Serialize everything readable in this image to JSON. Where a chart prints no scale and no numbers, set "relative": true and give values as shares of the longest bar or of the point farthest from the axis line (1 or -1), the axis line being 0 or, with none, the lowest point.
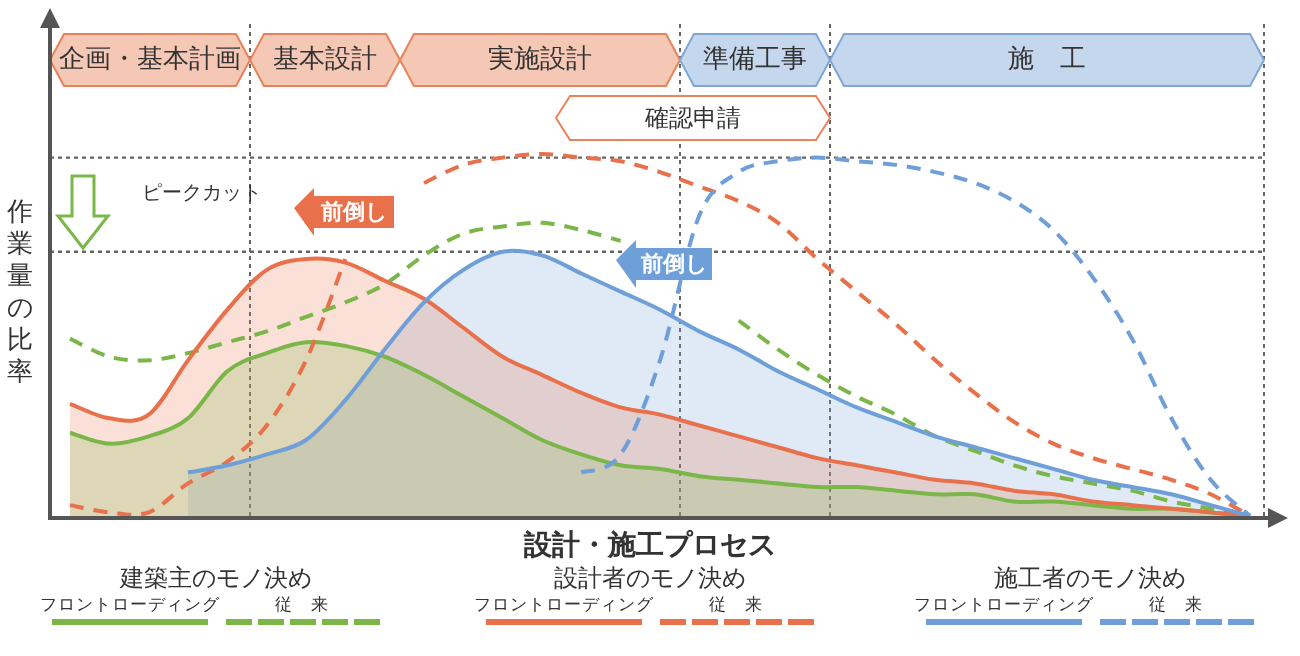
{
  "chart_data": {
    "type": "line",
    "relative": true,
    "ylabel": "作業量の比率",
    "xlabel": "設計・施工プロセス",
    "categories": [
      null,
      null,
      null,
      null,
      null,
      null,
      null,
      null,
      null,
      null,
      null,
      null,
      null,
      null,
      null,
      null,
      null,
      null,
      null,
      null,
      null,
      null,
      null,
      null,
      null,
      null,
      null,
      null,
      null,
      null,
      null
    ],
    "series": [
      {
        "type": "area",
        "color": "#7ab648",
        "line_style": "solid",
        "values": [
          0.23,
          0.2,
          0.22,
          0.27,
          0.4,
          0.45,
          0.48,
          0.47,
          0.44,
          0.39,
          0.33,
          0.27,
          0.21,
          0.17,
          0.14,
          0.13,
          0.11,
          0.1,
          0.09,
          0.08,
          0.08,
          0.07,
          0.06,
          0.06,
          0.04,
          0.04,
          0.03,
          0.02,
          0.02,
          0.01,
          0
        ]
      },
      {
        "type": "line",
        "color": "#7ab648",
        "line_style": "dashed",
        "values": [
          0.49,
          0.44,
          0.43,
          0.45,
          0.48,
          0.51,
          0.55,
          0.59,
          0.64,
          0.72,
          0.78,
          0.8,
          0.81,
          0.79,
          0.76,
          null,
          null,
          0.54,
          0.46,
          0.39,
          0.33,
          0.28,
          0.22,
          0.18,
          0.14,
          0.11,
          0.09,
          0.07,
          0.04,
          0.02,
          0
        ]
      },
      {
        "type": "area",
        "color": "#e8704a",
        "line_style": "solid",
        "values": [
          0.31,
          0.27,
          0.28,
          0.43,
          0.57,
          0.68,
          0.71,
          0.7,
          0.65,
          0.6,
          0.52,
          0.44,
          0.39,
          0.34,
          0.3,
          0.28,
          0.25,
          0.22,
          0.19,
          0.16,
          0.14,
          0.12,
          0.1,
          0.09,
          0.07,
          0.06,
          0.04,
          0.03,
          0.02,
          0.01,
          0
        ]
      },
      {
        "type": "line",
        "color": "#e8704a",
        "line_style": "dashed",
        "values": [
          0.03,
          0.01,
          0.01,
          0.09,
          0.15,
          0.25,
          0.43,
          0.71,
          null,
          0.92,
          0.97,
          0.99,
          1.0,
          0.99,
          0.98,
          0.95,
          0.91,
          0.87,
          0.81,
          0.71,
          0.62,
          0.53,
          0.43,
          0.34,
          0.26,
          0.2,
          0.16,
          0.13,
          0.1,
          0.06,
          0
        ]
      },
      {
        "type": "area",
        "color": "#6f9fd8",
        "line_style": "solid",
        "values": [
          null,
          null,
          null,
          0.12,
          0.14,
          0.17,
          0.21,
          0.32,
          0.46,
          0.59,
          0.68,
          0.73,
          0.72,
          0.67,
          0.62,
          0.57,
          0.51,
          0.46,
          0.4,
          0.35,
          0.3,
          0.26,
          0.22,
          0.19,
          0.16,
          0.13,
          0.1,
          0.08,
          0.06,
          0.03,
          0
        ]
      },
      {
        "type": "line",
        "color": "#6f9fd8",
        "line_style": "dashed",
        "values": [
          null,
          null,
          null,
          null,
          null,
          null,
          null,
          null,
          null,
          null,
          null,
          null,
          null,
          0.12,
          0.17,
          0.43,
          0.83,
          0.95,
          0.98,
          0.99,
          0.98,
          0.97,
          0.95,
          0.92,
          0.87,
          0.79,
          0.66,
          0.49,
          0.27,
          0.1,
          0
        ]
      }
    ],
    "ref_lines": [
      {
        "axis": "y",
        "value": 0.99,
        "line_style": "dotted",
        "color": "#666666"
      },
      {
        "axis": "y",
        "value": 0.73,
        "line_style": "dotted",
        "color": "#666666"
      }
    ],
    "annotations": [
      "ピークカット",
      "前倒し",
      "前倒し",
      "建築主のモノ決め",
      "設計者のモノ決め",
      "施工者のモノ決め",
      "企画・基本計画",
      "基本設計",
      "実施設計",
      "準備工事",
      "施　工",
      "確認申請",
      "フロントローディング",
      "従　来",
      "フロントローディング",
      "従　来",
      "フロントローディング",
      "従　来"
    ]
  }
}
